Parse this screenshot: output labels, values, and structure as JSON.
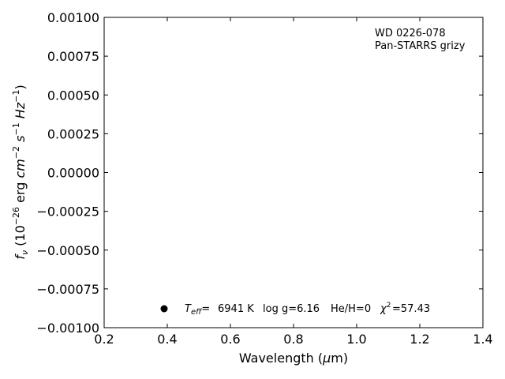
{
  "chart_data": {
    "type": "scatter",
    "title": "",
    "xlabel": "Wavelength (μm)",
    "ylabel": "f_ν (10^-26 erg cm^-2 s^-1 Hz^-1)",
    "xlim": [
      0.2,
      1.4
    ],
    "ylim": [
      -0.001,
      0.001
    ],
    "x_ticks": [
      "0.2",
      "0.4",
      "0.6",
      "0.8",
      "1.0",
      "1.2",
      "1.4"
    ],
    "y_ticks": [
      "−0.00100",
      "−0.00075",
      "−0.00050",
      "−0.00025",
      "0.00000",
      "0.00025",
      "0.00050",
      "0.00075",
      "0.00100"
    ],
    "grid": false,
    "object_name": "WD 0226-078",
    "survey": "Pan-STARRS grizy",
    "fit_label": {
      "teff": "6941 K",
      "logg": "log g=6.16",
      "heh": "He/H=0",
      "chi2": "=57.43"
    },
    "series": [],
    "legend_marker_color": "#000000"
  }
}
